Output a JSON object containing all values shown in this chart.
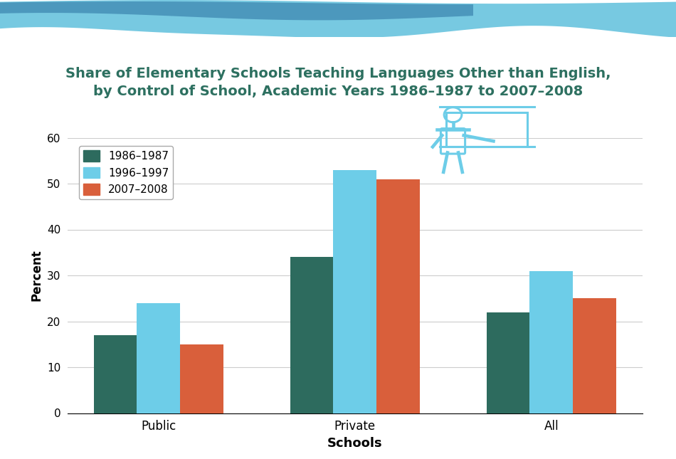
{
  "title_line1": "Share of Elementary Schools Teaching Languages Other than English,",
  "title_line2": "by Control of School, Academic Years 1986–1987 to 2007–2008",
  "categories": [
    "Public",
    "Private",
    "All"
  ],
  "series": {
    "1986–1987": [
      17,
      34,
      22
    ],
    "1996–1997": [
      24,
      53,
      31
    ],
    "2007–2008": [
      15,
      51,
      25
    ]
  },
  "colors": {
    "1986–1987": "#2d6b5e",
    "1996–1997": "#6dcde8",
    "2007–2008": "#d95f3b"
  },
  "ylabel": "Percent",
  "xlabel": "Schools",
  "ylim": [
    0,
    60
  ],
  "yticks": [
    0,
    10,
    20,
    30,
    40,
    50,
    60
  ],
  "bar_width": 0.22,
  "legend_labels": [
    "1986–1987",
    "1996–1997",
    "2007–2008"
  ],
  "title_color": "#2d7060",
  "background_color": "#ffffff",
  "grid_color": "#cccccc",
  "icon_color": "#6dcde8",
  "banner_color1": "#3a8fc0",
  "banner_color2": "#5ac8e0"
}
